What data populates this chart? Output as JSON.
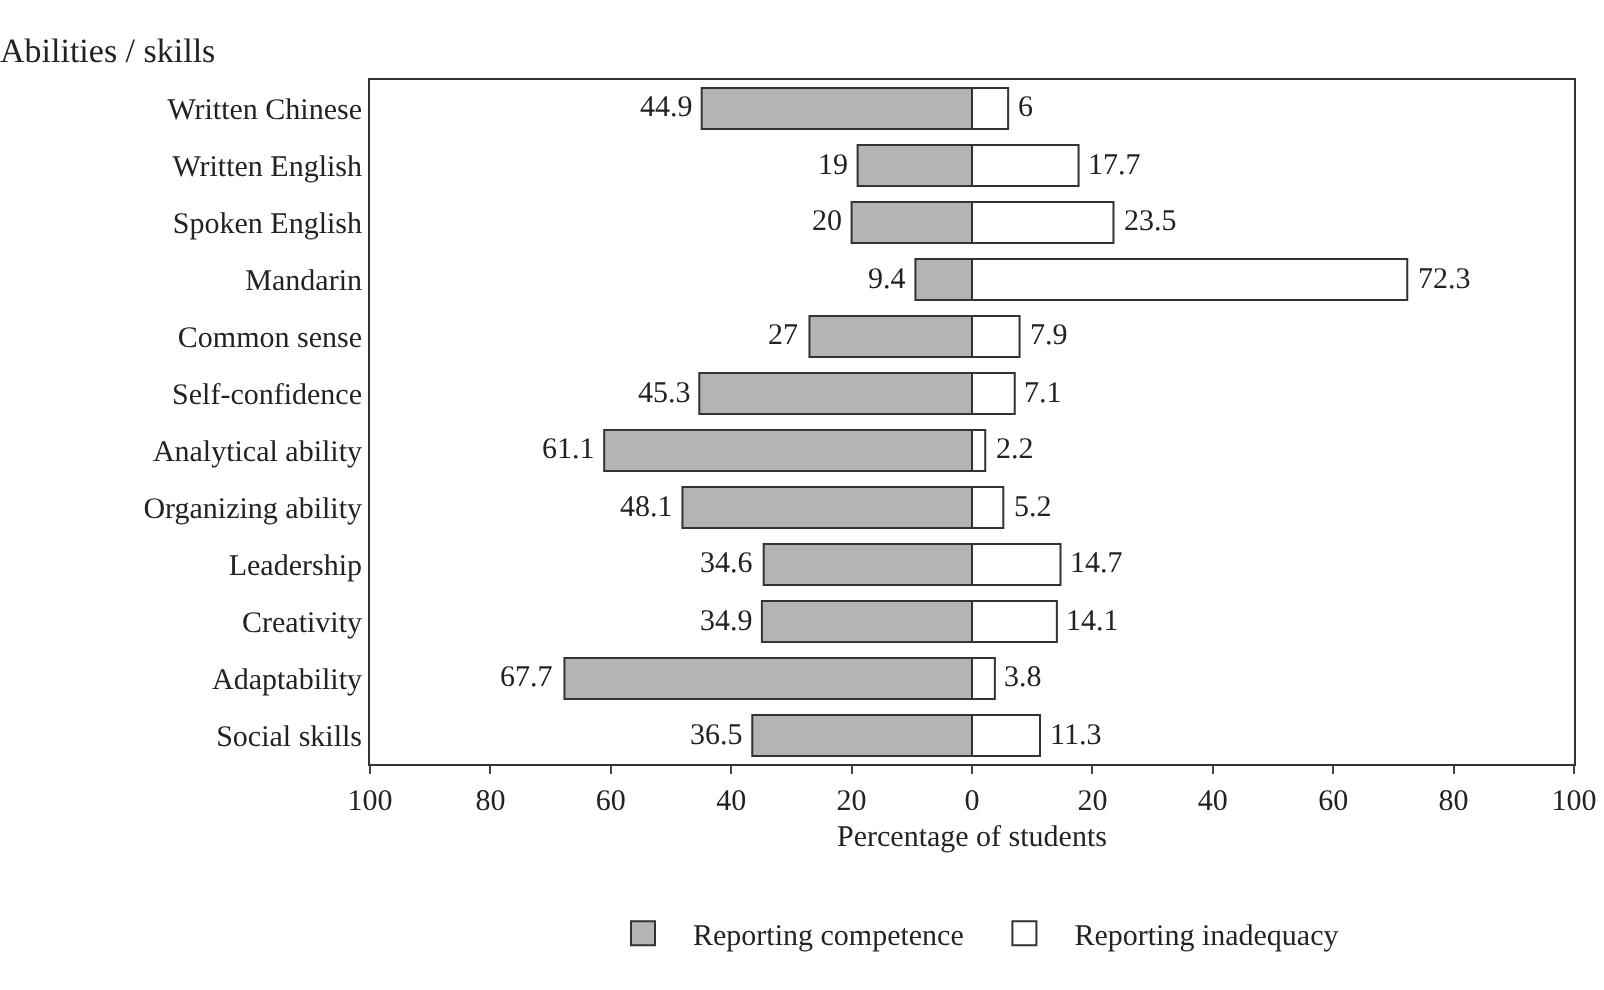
{
  "chart_data": {
    "type": "bar",
    "orientation": "horizontal",
    "ylabel": "Abilities / skills",
    "xlabel": "Percentage of students",
    "categories": [
      "Written Chinese",
      "Written English",
      "Spoken English",
      "Mandarin",
      "Common sense",
      "Self-confidence",
      "Analytical ability",
      "Organizing ability",
      "Leadership",
      "Creativity",
      "Adaptability",
      "Social skills"
    ],
    "series": [
      {
        "name": "Reporting competence",
        "color": "#b4b4b4",
        "base": [
          -44.9,
          -19,
          -20,
          -9.4,
          -27,
          -45.3,
          -61.1,
          -48.1,
          -34.6,
          -34.9,
          -67.7,
          -36.5
        ],
        "values": [
          44.9,
          19,
          20,
          9.4,
          27,
          45.3,
          61.1,
          48.1,
          34.6,
          34.9,
          67.7,
          36.5
        ],
        "value_labels": [
          "44.9",
          "19",
          "20",
          "9.4",
          "27",
          "45.3",
          "61.1",
          "48.1",
          "34.6",
          "34.9",
          "67.7",
          "36.5"
        ]
      },
      {
        "name": "Reporting inadequacy",
        "color": "#ffffff",
        "values": [
          6,
          17.7,
          23.5,
          72.3,
          7.9,
          7.1,
          2.2,
          5.2,
          14.7,
          14.1,
          3.8,
          11.3
        ],
        "value_labels": [
          "6",
          "17.7",
          "23.5",
          "72.3",
          "7.9",
          "7.1",
          "2.2",
          "5.2",
          "14.7",
          "14.1",
          "3.8",
          "11.3"
        ]
      }
    ],
    "xlim": [
      -100,
      100
    ],
    "xticks": [
      {
        "value": -100,
        "label": "100"
      },
      {
        "value": -80,
        "label": "80"
      },
      {
        "value": -60,
        "label": "60"
      },
      {
        "value": -40,
        "label": "40"
      },
      {
        "value": -20,
        "label": "20"
      },
      0,
      20,
      40,
      60,
      80,
      100
    ],
    "grid": false,
    "legend": "bottom"
  }
}
